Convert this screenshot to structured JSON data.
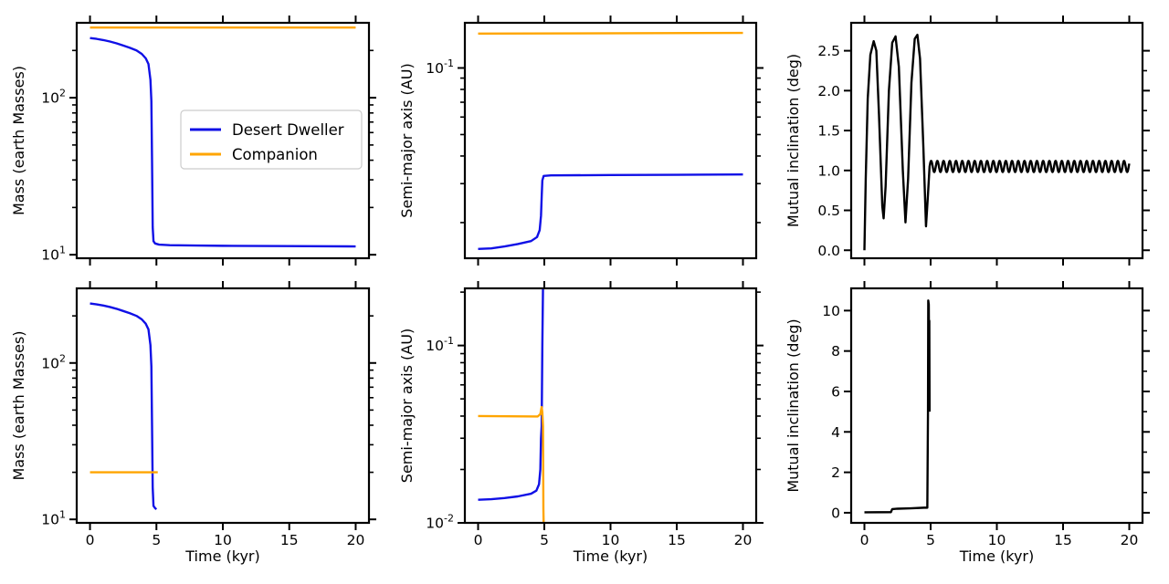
{
  "chart_data": [
    {
      "panel": "top-left",
      "type": "line",
      "xlabel": "",
      "ylabel": "Mass (earth Masses)",
      "xlim": [
        -1,
        21
      ],
      "ylim": [
        9.5,
        300
      ],
      "yscale": "log",
      "xticks": [
        0,
        5,
        10,
        15,
        20
      ],
      "xtick_labels": [
        "",
        "",
        "",
        "",
        ""
      ],
      "yticks": [
        10,
        100
      ],
      "ytick_labels": [
        "10^1",
        "10^2"
      ],
      "legend": {
        "placement": "center-right",
        "entries": [
          "Desert Dweller",
          "Companion"
        ]
      },
      "series": [
        {
          "name": "Desert Dweller",
          "color": "#1010e6",
          "points": [
            [
              0,
              240
            ],
            [
              0.5,
              237
            ],
            [
              1,
              233
            ],
            [
              1.5,
              228
            ],
            [
              2,
              222
            ],
            [
              2.5,
              215
            ],
            [
              3,
              208
            ],
            [
              3.5,
              200
            ],
            [
              3.9,
              190
            ],
            [
              4.2,
              178
            ],
            [
              4.4,
              164
            ],
            [
              4.55,
              130
            ],
            [
              4.62,
              95
            ],
            [
              4.67,
              40
            ],
            [
              4.72,
              15
            ],
            [
              4.78,
              12.2
            ],
            [
              4.9,
              11.8
            ],
            [
              5.2,
              11.6
            ],
            [
              6,
              11.5
            ],
            [
              8,
              11.45
            ],
            [
              10,
              11.4
            ],
            [
              15,
              11.35
            ],
            [
              20,
              11.3
            ]
          ]
        },
        {
          "name": "Companion",
          "color": "#ffa500",
          "points": [
            [
              0,
              280
            ],
            [
              20,
              280
            ]
          ]
        }
      ]
    },
    {
      "panel": "top-middle",
      "type": "line",
      "xlabel": "",
      "ylabel": "Semi-major axis (AU)",
      "xlim": [
        -1,
        21
      ],
      "ylim": [
        0.0138,
        0.16
      ],
      "yscale": "log",
      "xticks": [
        0,
        5,
        10,
        15,
        20
      ],
      "xtick_labels": [
        "",
        "",
        "",
        "",
        ""
      ],
      "yticks": [
        0.1
      ],
      "ytick_labels": [
        "10^-1"
      ],
      "series": [
        {
          "name": "Desert Dweller",
          "color": "#1010e6",
          "points": [
            [
              0,
              0.0152
            ],
            [
              1,
              0.0153
            ],
            [
              2,
              0.0156
            ],
            [
              3,
              0.016
            ],
            [
              4,
              0.0165
            ],
            [
              4.45,
              0.0172
            ],
            [
              4.65,
              0.0185
            ],
            [
              4.75,
              0.0215
            ],
            [
              4.8,
              0.026
            ],
            [
              4.85,
              0.031
            ],
            [
              4.95,
              0.0325
            ],
            [
              5.5,
              0.0327
            ],
            [
              10,
              0.0328
            ],
            [
              15,
              0.0329
            ],
            [
              20,
              0.033
            ]
          ]
        },
        {
          "name": "Companion",
          "color": "#ffa500",
          "points": [
            [
              0,
              0.143
            ],
            [
              20,
              0.144
            ]
          ]
        }
      ]
    },
    {
      "panel": "top-right",
      "type": "line",
      "xlabel": "",
      "ylabel": "Mutual inclination (deg)",
      "xlim": [
        -1,
        21
      ],
      "ylim": [
        -0.1,
        2.85
      ],
      "xticks": [
        0,
        5,
        10,
        15,
        20
      ],
      "xtick_labels": [
        "",
        "",
        "",
        "",
        ""
      ],
      "yticks": [
        0,
        0.5,
        1.0,
        1.5,
        2.0,
        2.5
      ],
      "ytick_labels": [
        "0.0",
        "0.5",
        "1.0",
        "1.5",
        "2.0",
        "2.5"
      ],
      "series": [
        {
          "name": "",
          "color": "#000000",
          "points": [
            [
              0,
              0
            ],
            [
              0.1,
              0.9
            ],
            [
              0.25,
              1.9
            ],
            [
              0.45,
              2.45
            ],
            [
              0.7,
              2.62
            ],
            [
              0.9,
              2.5
            ],
            [
              1.1,
              1.7
            ],
            [
              1.35,
              0.55
            ],
            [
              1.45,
              0.4
            ],
            [
              1.6,
              0.8
            ],
            [
              1.85,
              2.0
            ],
            [
              2.1,
              2.6
            ],
            [
              2.35,
              2.68
            ],
            [
              2.6,
              2.3
            ],
            [
              2.9,
              1.0
            ],
            [
              3.1,
              0.35
            ],
            [
              3.3,
              0.9
            ],
            [
              3.55,
              2.1
            ],
            [
              3.8,
              2.65
            ],
            [
              4.0,
              2.7
            ],
            [
              4.2,
              2.4
            ],
            [
              4.45,
              1.3
            ],
            [
              4.65,
              0.3
            ],
            [
              4.8,
              0.7
            ],
            [
              4.92,
              1.05
            ]
          ]
        }
      ],
      "oscillation": {
        "x_start": 4.92,
        "x_end": 20,
        "center": 1.05,
        "amplitude": 0.07,
        "period": 0.47
      }
    },
    {
      "panel": "bottom-left",
      "type": "line",
      "xlabel": "Time (kyr)",
      "ylabel": "Mass (earth Masses)",
      "xlim": [
        -1,
        21
      ],
      "ylim": [
        9.5,
        300
      ],
      "yscale": "log",
      "xticks": [
        0,
        5,
        10,
        15,
        20
      ],
      "xtick_labels": [
        "0",
        "5",
        "10",
        "15",
        "20"
      ],
      "yticks": [
        10,
        100
      ],
      "ytick_labels": [
        "10^1",
        "10^2"
      ],
      "series": [
        {
          "name": "Desert Dweller",
          "color": "#1010e6",
          "points": [
            [
              0,
              240
            ],
            [
              0.5,
              237
            ],
            [
              1,
              233
            ],
            [
              1.5,
              228
            ],
            [
              2,
              222
            ],
            [
              2.5,
              215
            ],
            [
              3,
              208
            ],
            [
              3.5,
              200
            ],
            [
              3.9,
              190
            ],
            [
              4.2,
              178
            ],
            [
              4.4,
              164
            ],
            [
              4.55,
              130
            ],
            [
              4.62,
              95
            ],
            [
              4.67,
              40
            ],
            [
              4.72,
              16
            ],
            [
              4.78,
              12.2
            ],
            [
              4.9,
              11.8
            ],
            [
              5.0,
              11.6
            ]
          ]
        },
        {
          "name": "Companion",
          "color": "#ffa500",
          "points": [
            [
              0,
              20
            ],
            [
              5.1,
              20
            ]
          ]
        }
      ]
    },
    {
      "panel": "bottom-middle",
      "type": "line",
      "xlabel": "Time (kyr)",
      "ylabel": "Semi-major axis (AU)",
      "xlim": [
        -1,
        21
      ],
      "ylim": [
        0.01,
        0.21
      ],
      "yscale": "log",
      "xticks": [
        0,
        5,
        10,
        15,
        20
      ],
      "xtick_labels": [
        "0",
        "5",
        "10",
        "15",
        "20"
      ],
      "yticks": [
        0.01,
        0.1
      ],
      "ytick_labels": [
        "10^-2",
        "10^-1"
      ],
      "series": [
        {
          "name": "Desert Dweller",
          "color": "#1010e6",
          "points": [
            [
              0,
              0.0135
            ],
            [
              1,
              0.0136
            ],
            [
              2,
              0.0138
            ],
            [
              3,
              0.0141
            ],
            [
              4,
              0.0146
            ],
            [
              4.4,
              0.0152
            ],
            [
              4.6,
              0.0165
            ],
            [
              4.7,
              0.02
            ],
            [
              4.75,
              0.03
            ],
            [
              4.8,
              0.035
            ],
            [
              4.85,
              0.1
            ],
            [
              4.9,
              0.21
            ]
          ]
        },
        {
          "name": "Companion",
          "color": "#ffa500",
          "points": [
            [
              0,
              0.04
            ],
            [
              4.5,
              0.0398
            ],
            [
              4.7,
              0.041
            ],
            [
              4.8,
              0.045
            ],
            [
              4.85,
              0.042
            ],
            [
              4.9,
              0.035
            ],
            [
              4.93,
              0.012
            ],
            [
              4.95,
              0.01
            ]
          ]
        }
      ]
    },
    {
      "panel": "bottom-right",
      "type": "line",
      "xlabel": "Time (kyr)",
      "ylabel": "Mutual inclination (deg)",
      "xlim": [
        -1,
        21
      ],
      "ylim": [
        -0.5,
        11.1
      ],
      "xticks": [
        0,
        5,
        10,
        15,
        20
      ],
      "xtick_labels": [
        "0",
        "5",
        "10",
        "15",
        "20"
      ],
      "yticks": [
        0,
        2,
        4,
        6,
        8,
        10
      ],
      "ytick_labels": [
        "0",
        "2",
        "4",
        "6",
        "8",
        "10"
      ],
      "series": [
        {
          "name": "",
          "color": "#000000",
          "points": [
            [
              0,
              0.02
            ],
            [
              2,
              0.03
            ],
            [
              2.1,
              0.18
            ],
            [
              2.5,
              0.2
            ],
            [
              3.5,
              0.22
            ],
            [
              4.5,
              0.25
            ],
            [
              4.75,
              0.25
            ],
            [
              4.8,
              5.0
            ],
            [
              4.82,
              10.5
            ],
            [
              4.86,
              10.3
            ],
            [
              4.88,
              8.0
            ],
            [
              4.9,
              9.5
            ],
            [
              4.92,
              5.0
            ]
          ]
        }
      ]
    }
  ]
}
